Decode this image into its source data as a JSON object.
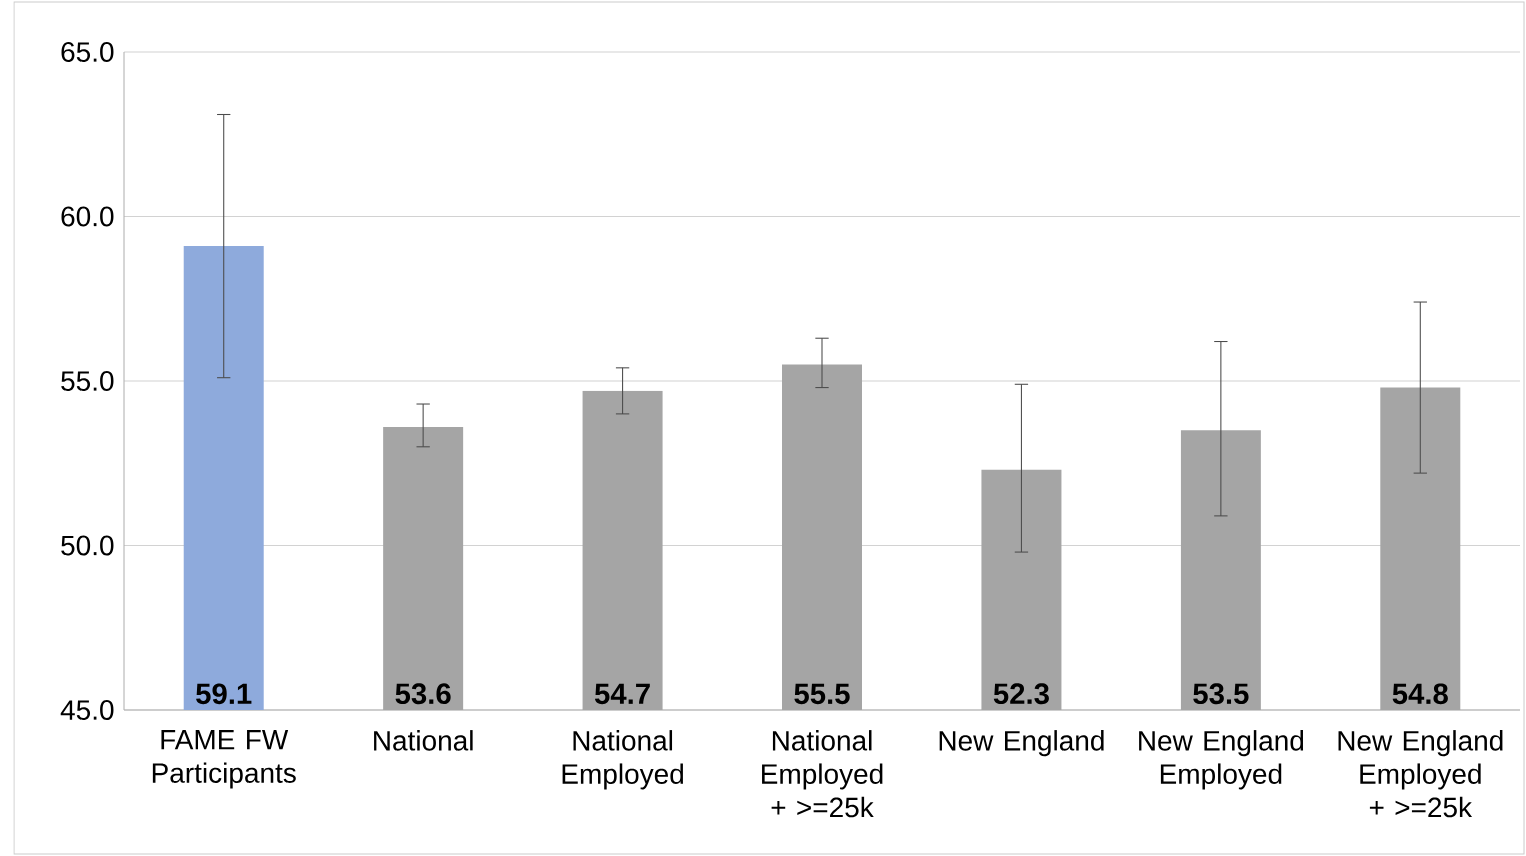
{
  "chart_data": {
    "type": "bar",
    "categories": [
      "FAME FW Participants",
      "National",
      "National Employed",
      "National Employed + >=25k",
      "New England",
      "New England Employed",
      "New England Employed + >=25k"
    ],
    "values": [
      59.1,
      53.6,
      54.7,
      55.5,
      52.3,
      53.5,
      54.8
    ],
    "colors": [
      "#8eaadc",
      "#a5a5a5",
      "#a5a5a5",
      "#a5a5a5",
      "#a5a5a5",
      "#a5a5a5",
      "#a5a5a5"
    ],
    "errors": [
      [
        55.1,
        63.1
      ],
      [
        53.0,
        54.3
      ],
      [
        54.0,
        55.4
      ],
      [
        54.8,
        56.3
      ],
      [
        49.8,
        54.9
      ],
      [
        50.9,
        56.2
      ],
      [
        52.2,
        57.4
      ]
    ],
    "ylim": [
      45,
      65
    ],
    "yticks": [
      {
        "value": 45,
        "label": "45.0"
      },
      {
        "value": 50,
        "label": "50.0"
      },
      {
        "value": 55,
        "label": "55.0"
      },
      {
        "value": 60,
        "label": "60.0"
      },
      {
        "value": 65,
        "label": "65.0"
      }
    ],
    "grid": "y",
    "data_labels": true
  }
}
